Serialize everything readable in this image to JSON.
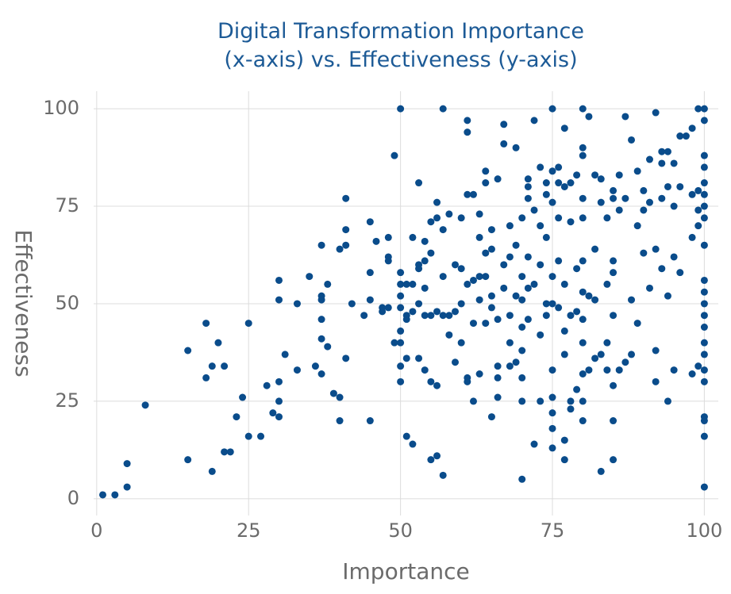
{
  "chart_data": {
    "type": "scatter",
    "title": "Digital Transformation Importance (x-axis) vs. Effectiveness (y-axis)",
    "x_label": "Importance",
    "y_label": "Effectiveness",
    "color": "#0a4c8b",
    "grid": true,
    "xlim": [
      -0.5,
      102.3
    ],
    "ylim": [
      -4.3,
      104.5
    ],
    "xticks": [
      0,
      25,
      50,
      75,
      100
    ],
    "yticks": [
      0,
      25,
      50,
      75,
      100
    ],
    "x": [
      1,
      3,
      5,
      5,
      8,
      15,
      15,
      18,
      18,
      19,
      19,
      20,
      21,
      21,
      22,
      23,
      24,
      25,
      25,
      27,
      28,
      29,
      30,
      30,
      30,
      30,
      30,
      31,
      33,
      33,
      35,
      36,
      37,
      37,
      37,
      37,
      37,
      37,
      38,
      38,
      39,
      40,
      40,
      40,
      41,
      41,
      41,
      41,
      42,
      44,
      45,
      45,
      45,
      45,
      46,
      47,
      47,
      48,
      48,
      48,
      48,
      49,
      49,
      50,
      50,
      50,
      50,
      50,
      50,
      50,
      50,
      50,
      51,
      51,
      51,
      51,
      51,
      52,
      52,
      52,
      52,
      53,
      53,
      53,
      53,
      53,
      54,
      54,
      54,
      54,
      54,
      55,
      55,
      55,
      55,
      55,
      56,
      56,
      56,
      56,
      56,
      57,
      57,
      57,
      57,
      57,
      58,
      58,
      58,
      59,
      59,
      59,
      60,
      60,
      60,
      60,
      61,
      61,
      61,
      61,
      61,
      61,
      62,
      62,
      62,
      62,
      63,
      63,
      63,
      63,
      63,
      64,
      64,
      64,
      64,
      64,
      65,
      65,
      65,
      65,
      65,
      66,
      66,
      66,
      66,
      66,
      67,
      67,
      67,
      67,
      68,
      68,
      68,
      68,
      68,
      69,
      69,
      69,
      69,
      70,
      70,
      70,
      70,
      70,
      70,
      70,
      70,
      71,
      71,
      71,
      71,
      71,
      71,
      72,
      72,
      72,
      72,
      73,
      73,
      73,
      73,
      73,
      74,
      74,
      74,
      74,
      74,
      75,
      75,
      75,
      75,
      75,
      75,
      75,
      75,
      75,
      75,
      76,
      76,
      76,
      76,
      76,
      77,
      77,
      77,
      77,
      77,
      77,
      77,
      78,
      78,
      78,
      78,
      78,
      79,
      79,
      79,
      79,
      80,
      80,
      80,
      80,
      80,
      80,
      80,
      80,
      80,
      80,
      80,
      80,
      81,
      81,
      81,
      82,
      82,
      82,
      82,
      83,
      83,
      83,
      83,
      84,
      84,
      84,
      84,
      85,
      85,
      85,
      85,
      85,
      85,
      85,
      85,
      86,
      86,
      86,
      87,
      87,
      87,
      88,
      88,
      88,
      89,
      89,
      89,
      90,
      90,
      90,
      91,
      91,
      91,
      92,
      92,
      92,
      92,
      93,
      93,
      93,
      93,
      94,
      94,
      94,
      94,
      95,
      95,
      95,
      95,
      96,
      96,
      96,
      97,
      98,
      98,
      98,
      98,
      99,
      99,
      99,
      99,
      99,
      100,
      100,
      100,
      100,
      100,
      100,
      100,
      100,
      100,
      100,
      100,
      100,
      100,
      100,
      100,
      100,
      100,
      100,
      100,
      100,
      100,
      100
    ],
    "values": [
      1,
      1,
      3,
      9,
      24,
      10,
      38,
      31,
      45,
      7,
      34,
      40,
      12,
      34,
      12,
      21,
      26,
      16,
      45,
      16,
      29,
      22,
      21,
      25,
      30,
      51,
      56,
      37,
      33,
      50,
      57,
      34,
      32,
      41,
      46,
      51,
      52,
      65,
      39,
      55,
      27,
      20,
      26,
      64,
      36,
      65,
      69,
      77,
      50,
      47,
      20,
      51,
      58,
      71,
      66,
      48,
      49,
      49,
      61,
      62,
      67,
      40,
      88,
      40,
      100,
      30,
      34,
      43,
      49,
      52,
      55,
      58,
      16,
      36,
      46,
      47,
      55,
      14,
      48,
      55,
      67,
      81,
      36,
      50,
      59,
      60,
      33,
      47,
      54,
      61,
      66,
      10,
      30,
      47,
      63,
      71,
      11,
      29,
      48,
      72,
      76,
      100,
      6,
      47,
      57,
      69,
      42,
      47,
      73,
      35,
      48,
      60,
      40,
      50,
      59,
      72,
      30,
      31,
      78,
      94,
      97,
      55,
      25,
      45,
      56,
      78,
      32,
      51,
      57,
      67,
      73,
      45,
      57,
      63,
      81,
      84,
      21,
      49,
      52,
      64,
      69,
      26,
      31,
      34,
      46,
      82,
      54,
      60,
      91,
      96,
      34,
      40,
      47,
      62,
      70,
      35,
      52,
      65,
      90,
      5,
      25,
      31,
      38,
      44,
      51,
      57,
      72,
      46,
      54,
      62,
      77,
      80,
      82,
      14,
      55,
      74,
      97,
      25,
      42,
      60,
      70,
      85,
      47,
      50,
      67,
      78,
      81,
      13,
      18,
      22,
      26,
      33,
      50,
      57,
      76,
      84,
      100,
      49,
      61,
      72,
      81,
      85,
      10,
      15,
      37,
      43,
      55,
      80,
      95,
      23,
      25,
      47,
      71,
      81,
      28,
      48,
      59,
      83,
      20,
      25,
      32,
      40,
      46,
      53,
      61,
      72,
      77,
      88,
      90,
      100,
      33,
      52,
      98,
      36,
      51,
      64,
      83,
      7,
      37,
      76,
      82,
      33,
      40,
      55,
      72,
      10,
      20,
      29,
      47,
      58,
      61,
      77,
      79,
      33,
      74,
      83,
      35,
      77,
      98,
      37,
      51,
      92,
      45,
      70,
      84,
      63,
      74,
      79,
      54,
      76,
      87,
      30,
      38,
      64,
      99,
      59,
      77,
      86,
      89,
      25,
      52,
      80,
      89,
      33,
      62,
      75,
      86,
      58,
      80,
      93,
      93,
      32,
      67,
      78,
      95,
      100,
      34,
      70,
      74,
      79,
      3,
      16,
      20,
      21,
      30,
      33,
      37,
      40,
      44,
      47,
      50,
      53,
      56,
      65,
      72,
      75,
      78,
      81,
      85,
      88,
      97,
      100
    ]
  }
}
